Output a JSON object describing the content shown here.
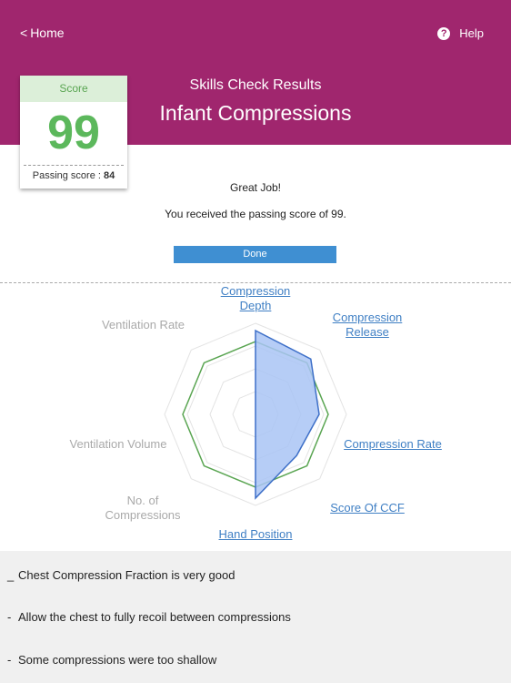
{
  "header": {
    "back_chevron": "<",
    "back_label": "Home",
    "help_icon": "?",
    "help_label": "Help",
    "subtitle": "Skills Check Results",
    "title": "Infant Compressions",
    "bg_color": "#a0266e"
  },
  "score_card": {
    "label": "Score",
    "value": "99",
    "passing_label": "Passing score : ",
    "passing_value": "84",
    "accent_color": "#5cb85c"
  },
  "result": {
    "headline": "Great Job!",
    "message": "You received the passing score of 99.",
    "done_label": "Done"
  },
  "radar": {
    "axes": [
      {
        "label": "Compression Depth",
        "active": true,
        "value": 0.92
      },
      {
        "label": "Compression Release",
        "active": true,
        "value": 0.86
      },
      {
        "label": "Compression Rate",
        "active": true,
        "value": 0.7
      },
      {
        "label": "Score Of CCF",
        "active": true,
        "value": 0.64
      },
      {
        "label": "Hand Position",
        "active": true,
        "value": 0.92
      },
      {
        "label": "No. of Compressions",
        "active": false,
        "value": 0
      },
      {
        "label": "Ventilation Volume",
        "active": false,
        "value": 0
      },
      {
        "label": "Ventilation Rate",
        "active": false,
        "value": 0
      }
    ],
    "passing_level": 0.8,
    "fill_color": "#a9c4f5",
    "stroke_color": "#3d6fc8",
    "passing_color": "#5aa552"
  },
  "feedback": [
    {
      "bullet": "_",
      "text": "Chest Compression Fraction is very good"
    },
    {
      "bullet": "-",
      "text": "Allow the chest to fully recoil between compressions"
    },
    {
      "bullet": "-",
      "text": "Some compressions were too shallow"
    }
  ]
}
